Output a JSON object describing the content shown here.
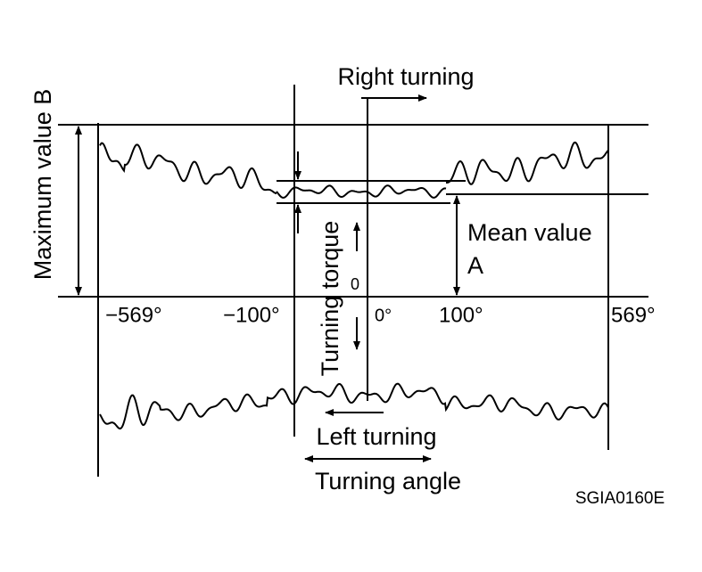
{
  "labels": {
    "max_value": "Maximum value B",
    "right_turning": "Right turning",
    "mean_value": "Mean value",
    "mean_letter": "A",
    "turning_torque": "Turning torque",
    "zero": "0",
    "left_turning": "Left turning",
    "turning_angle": "Turning angle",
    "code": "SGIA0160E"
  },
  "angles": [
    "−569°",
    "−100°",
    "0°",
    "100°",
    "569°"
  ]
}
